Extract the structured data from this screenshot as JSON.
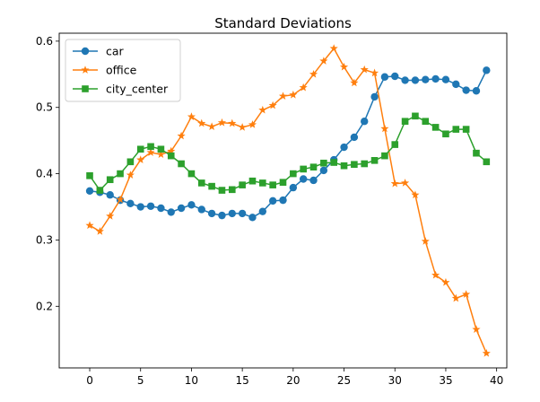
{
  "chart_data": {
    "type": "line",
    "title": "Standard Deviations",
    "xlabel": "",
    "ylabel": "",
    "xlim": [
      -3.0,
      41.0
    ],
    "ylim": [
      0.107,
      0.612
    ],
    "x_ticks": [
      0,
      5,
      10,
      15,
      20,
      25,
      30,
      35,
      40
    ],
    "y_ticks": [
      0.2,
      0.3,
      0.4,
      0.5,
      0.6
    ],
    "y_tick_labels": [
      "0.2",
      "0.3",
      "0.4",
      "0.5",
      "0.6"
    ],
    "grid": false,
    "legend_position": "upper-left",
    "x": [
      0,
      1,
      2,
      3,
      4,
      5,
      6,
      7,
      8,
      9,
      10,
      11,
      12,
      13,
      14,
      15,
      16,
      17,
      18,
      19,
      20,
      21,
      22,
      23,
      24,
      25,
      26,
      27,
      28,
      29,
      30,
      31,
      32,
      33,
      34,
      35,
      36,
      37,
      38,
      39
    ],
    "series": [
      {
        "name": "car",
        "color": "#1f77b4",
        "marker": "circle",
        "values": [
          0.374,
          0.372,
          0.368,
          0.36,
          0.355,
          0.35,
          0.351,
          0.348,
          0.342,
          0.348,
          0.353,
          0.346,
          0.34,
          0.337,
          0.34,
          0.34,
          0.334,
          0.343,
          0.359,
          0.36,
          0.379,
          0.392,
          0.39,
          0.405,
          0.421,
          0.44,
          0.455,
          0.479,
          0.516,
          0.546,
          0.547,
          0.541,
          0.541,
          0.542,
          0.543,
          0.542,
          0.535,
          0.526,
          0.525,
          0.556
        ]
      },
      {
        "name": "office",
        "color": "#ff7f0e",
        "marker": "star",
        "values": [
          0.322,
          0.313,
          0.336,
          0.361,
          0.398,
          0.421,
          0.432,
          0.429,
          0.434,
          0.457,
          0.486,
          0.476,
          0.471,
          0.477,
          0.476,
          0.47,
          0.474,
          0.496,
          0.503,
          0.517,
          0.519,
          0.53,
          0.55,
          0.57,
          0.589,
          0.561,
          0.537,
          0.557,
          0.552,
          0.468,
          0.385,
          0.386,
          0.368,
          0.298,
          0.247,
          0.236,
          0.212,
          0.218,
          0.165,
          0.129
        ]
      },
      {
        "name": "city_center",
        "color": "#2ca02c",
        "marker": "square",
        "values": [
          0.397,
          0.375,
          0.391,
          0.4,
          0.418,
          0.437,
          0.441,
          0.437,
          0.427,
          0.415,
          0.4,
          0.386,
          0.381,
          0.375,
          0.376,
          0.383,
          0.389,
          0.386,
          0.383,
          0.387,
          0.4,
          0.407,
          0.41,
          0.416,
          0.417,
          0.412,
          0.414,
          0.415,
          0.42,
          0.427,
          0.444,
          0.479,
          0.487,
          0.479,
          0.47,
          0.46,
          0.467,
          0.467,
          0.431,
          0.418
        ]
      }
    ]
  }
}
